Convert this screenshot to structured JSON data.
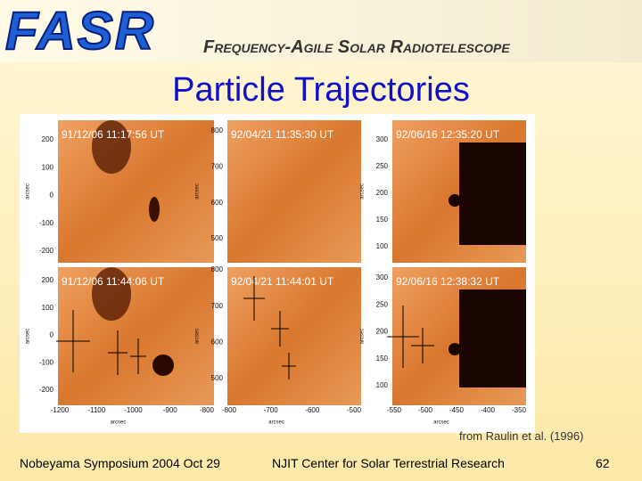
{
  "header": {
    "logo": "FASR",
    "subtitle": "Frequency-Agile Solar Radiotelescope"
  },
  "title": "Particle Trajectories",
  "figure": {
    "axis_label": "arcsec",
    "panels": [
      {
        "label": "91/12/06 11:17:56 UT",
        "yticks": [
          "200",
          "100",
          "0",
          "-100",
          "-200"
        ]
      },
      {
        "label": "92/04/21 11:35:30 UT",
        "yticks": [
          "800",
          "700",
          "600",
          "500"
        ]
      },
      {
        "label": "92/06/16 12:35:20 UT",
        "yticks": [
          "300",
          "250",
          "200",
          "150",
          "100"
        ]
      },
      {
        "label": "91/12/06 11:44:06 UT",
        "yticks": [
          "200",
          "100",
          "0",
          "-100",
          "-200"
        ]
      },
      {
        "label": "92/04/21 11:44:01 UT",
        "yticks": [
          "800",
          "700",
          "600",
          "500"
        ]
      },
      {
        "label": "92/06/16 12:38:32 UT",
        "yticks": [
          "300",
          "250",
          "200",
          "150",
          "100"
        ]
      }
    ],
    "xticks": [
      [
        "-1200",
        "-1100",
        "-1000",
        "-900",
        "-800"
      ],
      [
        "-800",
        "-700",
        "-600",
        "-500"
      ],
      [
        "-550",
        "-500",
        "-450",
        "-400",
        "-350"
      ]
    ]
  },
  "caption": "from Raulin et al. (1996)",
  "footer": {
    "left": "Nobeyama Symposium  2004 Oct 29",
    "center": "NJIT Center for Solar Terrestrial Research",
    "right": "62"
  }
}
